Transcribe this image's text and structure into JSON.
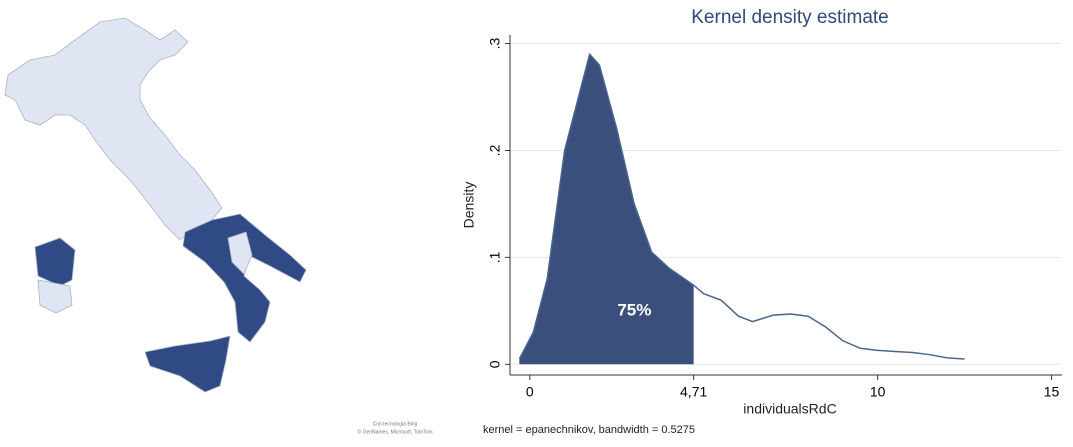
{
  "map": {
    "credit": [
      "Con tecnologia Bing",
      "© GeoNames, Microsoft, TomTom"
    ]
  },
  "chart_data": {
    "type": "area",
    "title": "Kernel density estimate",
    "x_label": "individualsRdC",
    "y_label": "Density",
    "note": "kernel = epanechnikov, bandwidth = 0.5275",
    "annotation": "75%",
    "shade_to": 4.71,
    "x": [
      -0.3,
      0.1,
      0.5,
      1.0,
      1.72,
      2.0,
      2.5,
      3.0,
      3.5,
      4.0,
      4.71,
      5.0,
      5.5,
      6.0,
      6.4,
      7.0,
      7.5,
      8.0,
      8.5,
      9.0,
      9.5,
      10,
      10.5,
      11,
      11.5,
      12,
      12.5
    ],
    "series": [
      {
        "name": "Density",
        "color": "#4a6590",
        "fill": "#3b4f7c",
        "values": [
          0.005,
          0.03,
          0.08,
          0.2,
          0.29,
          0.28,
          0.22,
          0.15,
          0.105,
          0.09,
          0.074,
          0.066,
          0.06,
          0.045,
          0.04,
          0.046,
          0.047,
          0.045,
          0.035,
          0.022,
          0.015,
          0.013,
          0.012,
          0.011,
          0.009,
          0.006,
          0.005
        ]
      }
    ],
    "xlim": [
      -0.57,
      15.3
    ],
    "ylim": [
      -0.01,
      0.308
    ],
    "xticks": [
      0,
      {
        "value": 4.71,
        "label": "4,71"
      },
      10,
      15
    ],
    "yticks": [
      0,
      {
        "value": 0.1,
        "label": ".1"
      },
      {
        "value": 0.2,
        "label": ".2"
      },
      {
        "value": 0.3,
        "label": ".3"
      }
    ],
    "grid": true
  }
}
